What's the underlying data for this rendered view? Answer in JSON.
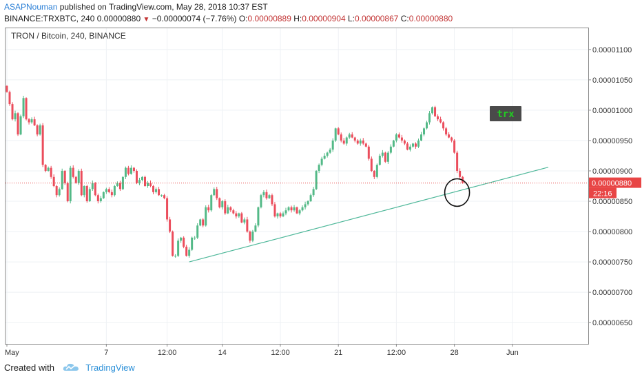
{
  "header": {
    "author": "ASAPNouman",
    "published_text": " published on TradingView.com, May 28, 2018 10:37 EST",
    "symbol": "BINANCE:TRXBTC, 240",
    "last_price": "0.00000880",
    "change_arrow": "▼",
    "change": "−0.00000074 (−7.76%)",
    "o_label": "O:",
    "o_value": "0.00000889",
    "h_label": "H:",
    "h_value": "0.00000904",
    "l_label": "L:",
    "l_value": "0.00000867",
    "c_label": "C:",
    "c_value": "0.00000880"
  },
  "chart_data": {
    "type": "candlestick",
    "title": "TRON / Bitcoin, 240, BINANCE",
    "ylim": [
      6.15e-06,
      1.135e-05
    ],
    "yticks": [
      "0.00000650",
      "0.00000700",
      "0.00000750",
      "0.00000800",
      "0.00000850",
      "0.00000900",
      "0.00000950",
      "0.00001000",
      "0.00001050",
      "0.00001100"
    ],
    "xticks": [
      {
        "label": "May",
        "i": 0
      },
      {
        "label": "7",
        "i": 36
      },
      {
        "label": "12:00",
        "i": 58
      },
      {
        "label": "14",
        "i": 78
      },
      {
        "label": "12:00",
        "i": 99
      },
      {
        "label": "21",
        "i": 120
      },
      {
        "label": "12:00",
        "i": 141
      },
      {
        "label": "28",
        "i": 162
      },
      {
        "label": "Jun",
        "i": 183
      }
    ],
    "last_price_label": "0.00000880",
    "last_price": 8.8e-06,
    "countdown_label": "22:16",
    "annotation_text": "trx",
    "colors": {
      "up": "#53b987",
      "down": "#eb4d5c",
      "trendline": "#4fb89a",
      "price_line": "#e84545",
      "label_bg": "#4a4a4a",
      "label_text": "#22cc22"
    },
    "trendline": {
      "from": {
        "i": 66,
        "y": 7.5e-06
      },
      "to": {
        "i": 196,
        "y": 9.06e-06
      }
    },
    "circle_marker": {
      "i": 160,
      "y": 8.62e-06
    },
    "closes": [
      1.03,
      1.01,
      0.985,
      0.995,
      0.96,
      0.99,
      1.02,
      0.985,
      0.98,
      0.985,
      0.975,
      0.96,
      0.975,
      0.91,
      0.9,
      0.905,
      0.89,
      0.875,
      0.86,
      0.87,
      0.9,
      0.88,
      0.85,
      0.905,
      0.89,
      0.88,
      0.9,
      0.86,
      0.875,
      0.85,
      0.87,
      0.88,
      0.86,
      0.85,
      0.855,
      0.865,
      0.87,
      0.865,
      0.86,
      0.875,
      0.88,
      0.87,
      0.89,
      0.905,
      0.895,
      0.905,
      0.9,
      0.88,
      0.885,
      0.89,
      0.875,
      0.88,
      0.875,
      0.865,
      0.87,
      0.86,
      0.86,
      0.855,
      0.82,
      0.8,
      0.76,
      0.76,
      0.785,
      0.79,
      0.775,
      0.76,
      0.77,
      0.79,
      0.79,
      0.81,
      0.82,
      0.81,
      0.84,
      0.835,
      0.86,
      0.87,
      0.855,
      0.84,
      0.85,
      0.83,
      0.84,
      0.835,
      0.83,
      0.825,
      0.83,
      0.815,
      0.82,
      0.8,
      0.785,
      0.8,
      0.81,
      0.84,
      0.86,
      0.865,
      0.855,
      0.86,
      0.845,
      0.825,
      0.83,
      0.825,
      0.83,
      0.835,
      0.84,
      0.835,
      0.84,
      0.83,
      0.835,
      0.84,
      0.845,
      0.85,
      0.86,
      0.87,
      0.9,
      0.91,
      0.92,
      0.925,
      0.93,
      0.935,
      0.95,
      0.97,
      0.96,
      0.95,
      0.945,
      0.955,
      0.96,
      0.955,
      0.95,
      0.945,
      0.95,
      0.945,
      0.94,
      0.92,
      0.9,
      0.89,
      0.91,
      0.925,
      0.93,
      0.915,
      0.93,
      0.94,
      0.95,
      0.96,
      0.955,
      0.95,
      0.945,
      0.935,
      0.94,
      0.945,
      0.94,
      0.95,
      0.96,
      0.97,
      0.98,
      0.995,
      1.005,
      0.99,
      0.985,
      0.98,
      0.97,
      0.96,
      0.955,
      0.95,
      0.93,
      0.9,
      0.89,
      0.88
    ]
  }
}
